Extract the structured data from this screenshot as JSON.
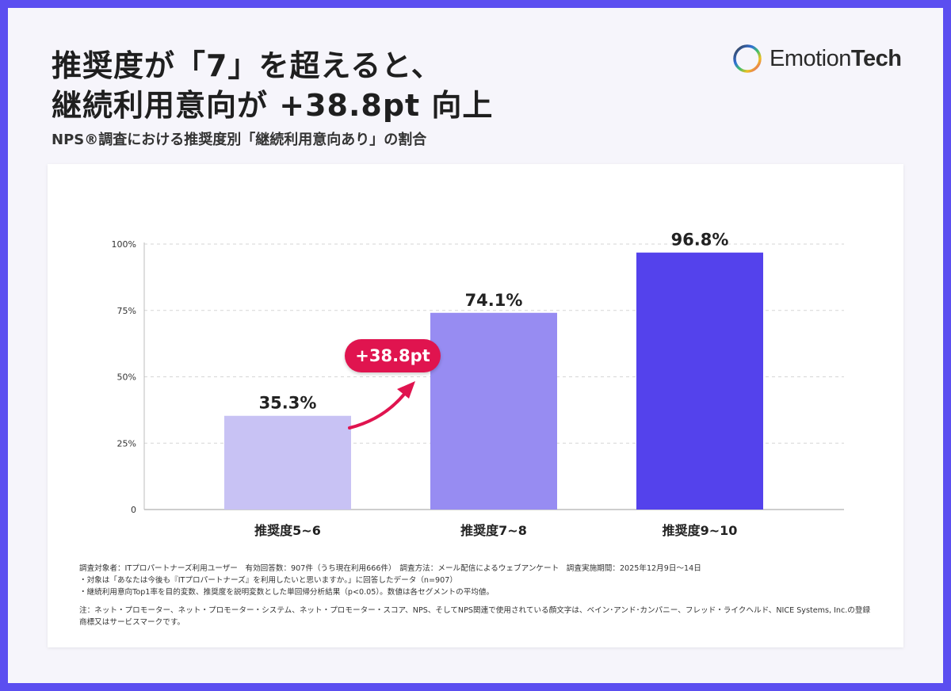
{
  "headline": {
    "line1": "推奨度が「7」を超えると、",
    "line2": "継続利用意向が +38.8pt 向上"
  },
  "subtitle": "NPS®調査における推奨度別「継続利用意向あり」の割合",
  "logo": {
    "text_light": "Emotion",
    "text_bold": "Tech",
    "mark": "ring-logo-icon"
  },
  "chart_data": {
    "type": "bar",
    "categories": [
      "推奨度5~6",
      "推奨度7~8",
      "推奨度9~10"
    ],
    "values": [
      35.3,
      74.1,
      96.8
    ],
    "data_labels": [
      "35.3%",
      "74.1%",
      "96.8%"
    ],
    "colors": [
      "#c8c2f4",
      "#978cf2",
      "#5442ec"
    ],
    "ylim": [
      0,
      100
    ],
    "yticks": [
      0,
      25,
      50,
      75,
      100
    ],
    "ytick_labels": [
      "0",
      "25%",
      "50%",
      "75%",
      "100%"
    ],
    "grid": true,
    "annotation": {
      "text": "+38.8pt",
      "color": "#e0144f"
    }
  },
  "notes": {
    "line1": "調査対象者：ITプロパートナーズ利用ユーザー　有効回答数：907件（うち現在利用666件）　調査方法：メール配信によるウェブアンケート　調査実施期間：2025年12月9日〜14日",
    "line2": "・対象は「あなたは今後も『ITプロパートナーズ』を利用したいと思いますか。」に回答したデータ（n=907）",
    "line3": "・継続利用意向Top1率を目的変数、推奨度を説明変数とした単回帰分析結果（p<0.05）。数値は各セグメントの平均値。",
    "line4": "注：ネット・プロモーター、ネット・プロモーター・システム、ネット・プロモーター・スコア、NPS、そしてNPS関連で使用されている顔文字は、ベイン･アンド･カンパニー、フレッド・ライクヘルド、NICE Systems, Inc.の登録商標又はサービスマークです。"
  }
}
